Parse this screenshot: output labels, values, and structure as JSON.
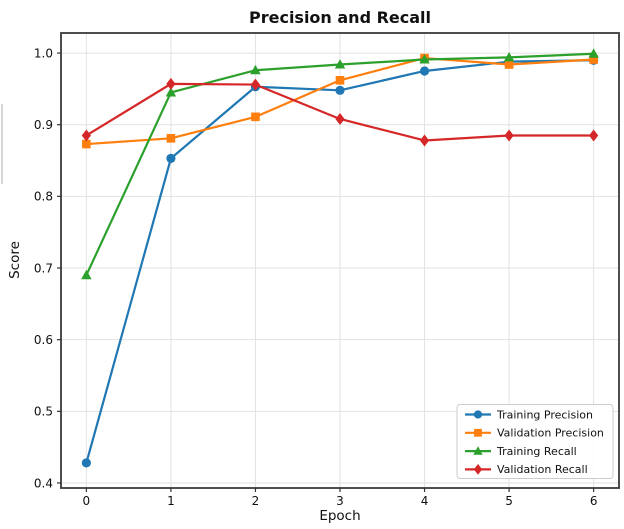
{
  "chart_data": {
    "type": "line",
    "title": "Precision and Recall",
    "xlabel": "Epoch",
    "ylabel": "Score",
    "x": [
      0,
      1,
      2,
      3,
      4,
      5,
      6
    ],
    "x_ticks": [
      "0",
      "1",
      "2",
      "3",
      "4",
      "5",
      "6"
    ],
    "y_ticks": [
      "0.4",
      "0.5",
      "0.6",
      "0.7",
      "0.8",
      "0.9",
      "1.0"
    ],
    "xlim": [
      -0.3,
      6.3
    ],
    "ylim": [
      0.393,
      1.028
    ],
    "grid": true,
    "legend_position": "lower right",
    "series": [
      {
        "name": "Training Precision",
        "color": "#1f77b4",
        "marker": "circle",
        "values": [
          0.428,
          0.853,
          0.953,
          0.948,
          0.975,
          0.988,
          0.99
        ]
      },
      {
        "name": "Validation Precision",
        "color": "#ff7f0e",
        "marker": "square",
        "values": [
          0.873,
          0.881,
          0.911,
          0.962,
          0.993,
          0.984,
          0.991
        ]
      },
      {
        "name": "Training Recall",
        "color": "#2ca02c",
        "marker": "triangle",
        "values": [
          0.69,
          0.945,
          0.976,
          0.984,
          0.991,
          0.994,
          0.999
        ]
      },
      {
        "name": "Validation Recall",
        "color": "#d62728",
        "marker": "diamond",
        "values": [
          0.885,
          0.957,
          0.956,
          0.908,
          0.878,
          0.885,
          0.885
        ]
      }
    ],
    "style": {
      "grid_color": "#e2e2e2",
      "spine_color": "#3a3a3a",
      "legend_border_color": "#cccccc",
      "legend_background": "#ffffff"
    }
  }
}
